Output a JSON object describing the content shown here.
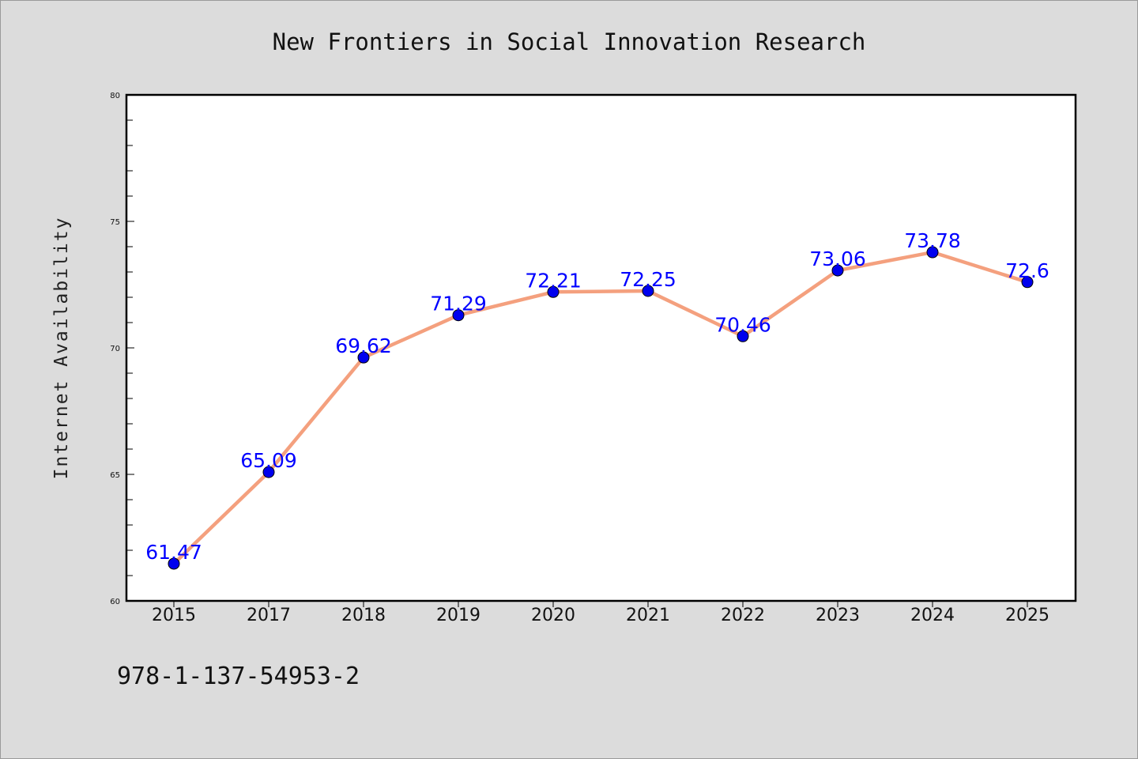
{
  "colors": {
    "background": "#dcdcdc",
    "plot_background": "#ffffff",
    "line": "#f4a07e",
    "marker": "#0000ee",
    "data_label": "#0000ff"
  },
  "isbn": "978-1-137-54953-2",
  "chart_data": {
    "type": "line",
    "title": "New Frontiers in Social Innovation Research",
    "xlabel": "",
    "ylabel": "Internet Availability",
    "categories": [
      "2015",
      "2017",
      "2018",
      "2019",
      "2020",
      "2021",
      "2022",
      "2023",
      "2024",
      "2025"
    ],
    "series": [
      {
        "values": [
          61.47,
          65.09,
          69.62,
          71.29,
          72.21,
          72.25,
          70.46,
          73.06,
          73.78,
          72.6
        ],
        "labels": [
          "61.47",
          "65.09",
          "69.62",
          "71.29",
          "72.21",
          "72.25",
          "70.46",
          "73.06",
          "73.78",
          "72.6"
        ]
      }
    ],
    "ylim": [
      60,
      80
    ],
    "yticks": [
      "60",
      "65",
      "70",
      "75",
      "80"
    ],
    "grid": false,
    "legend": "none",
    "markers": true
  }
}
